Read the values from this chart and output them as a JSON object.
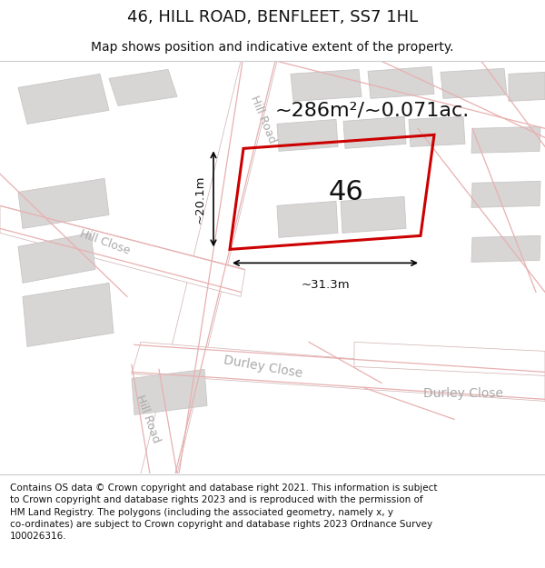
{
  "title": "46, HILL ROAD, BENFLEET, SS7 1HL",
  "subtitle": "Map shows position and indicative extent of the property.",
  "area_text": "~286m²/~0.071ac.",
  "label_46": "46",
  "width_label": "~31.3m",
  "height_label": "~20.1m",
  "footer": "Contains OS data © Crown copyright and database right 2021. This information is subject\nto Crown copyright and database rights 2023 and is reproduced with the permission of\nHM Land Registry. The polygons (including the associated geometry, namely x, y\nco-ordinates) are subject to Crown copyright and database rights 2023 Ordnance Survey\n100026316.",
  "bg_white": "#ffffff",
  "map_bg": "#ececec",
  "building_color": "#d8d5d5",
  "building_edge": "#c8c5c5",
  "red_line_color": "#cc0000",
  "road_pink": "#e8b0b0",
  "street_label_color": "#aaaaaa",
  "title_color": "#111111",
  "footer_color": "#111111",
  "title_fontsize": 13,
  "subtitle_fontsize": 10,
  "area_fontsize": 16,
  "label46_fontsize": 22,
  "street_fontsize": 9,
  "footer_fontsize": 7.5
}
